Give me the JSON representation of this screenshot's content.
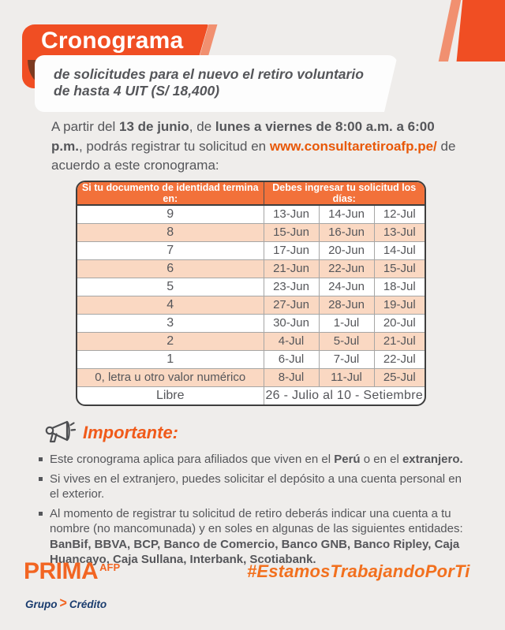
{
  "colors": {
    "accent_orange": "#F04E23",
    "salmon": "#F19070",
    "table_header_orange": "#F2713A",
    "peach_row": "#FAD8C2",
    "text_gray": "#55565A",
    "link_orange": "#E85808",
    "importante_orange": "#F05A1A",
    "brand_orange": "#F26522",
    "navy": "#1A3C6E",
    "background": "#EFEDEB"
  },
  "header": {
    "banner_title": "Cronograma",
    "subtitle_line1": "de solicitudes para el nuevo el retiro voluntario",
    "subtitle_line2": "de hasta 4 UIT (S/ 18,400)"
  },
  "intro": {
    "part1": "A partir del ",
    "bold1": "13 de junio",
    "part2": ", de ",
    "bold2": "lunes a viernes de 8:00 a.m. a 6:00 p.m.",
    "part3": ", podrás registrar tu solicitud en ",
    "link": "www.consultaretiroafp.pe/",
    "part4": " de acuerdo a este cronograma:"
  },
  "table": {
    "col1_header": "Si tu documento de identidad termina en:",
    "col2_header": "Debes ingresar tu solicitud los días:",
    "rows": [
      {
        "id": "9",
        "dates": [
          "13-Jun",
          "14-Jun",
          "12-Jul"
        ]
      },
      {
        "id": "8",
        "dates": [
          "15-Jun",
          "16-Jun",
          "13-Jul"
        ]
      },
      {
        "id": "7",
        "dates": [
          "17-Jun",
          "20-Jun",
          "14-Jul"
        ]
      },
      {
        "id": "6",
        "dates": [
          "21-Jun",
          "22-Jun",
          "15-Jul"
        ]
      },
      {
        "id": "5",
        "dates": [
          "23-Jun",
          "24-Jun",
          "18-Jul"
        ]
      },
      {
        "id": "4",
        "dates": [
          "27-Jun",
          "28-Jun",
          "19-Jul"
        ]
      },
      {
        "id": "3",
        "dates": [
          "30-Jun",
          "1-Jul",
          "20-Jul"
        ]
      },
      {
        "id": "2",
        "dates": [
          "4-Jul",
          "5-Jul",
          "21-Jul"
        ]
      },
      {
        "id": "1",
        "dates": [
          "6-Jul",
          "7-Jul",
          "22-Jul"
        ]
      },
      {
        "id": "0, letra u otro valor numérico",
        "dates": [
          "8-Jul",
          "11-Jul",
          "25-Jul"
        ]
      },
      {
        "id": "Libre",
        "dates_span": "26 - Julio al 10 - Setiembre"
      }
    ]
  },
  "importante": {
    "title": "Importante:",
    "icon": "megaphone-icon",
    "bullets": [
      [
        {
          "t": "Este cronograma aplica para afiliados que viven en el "
        },
        {
          "t": "Perú",
          "b": true
        },
        {
          "t": " o en el "
        },
        {
          "t": "extranjero.",
          "b": true
        }
      ],
      [
        {
          "t": "Si vives en el extranjero, puedes solicitar el depósito a una cuenta personal en el exterior."
        }
      ],
      [
        {
          "t": "Al momento de registrar tu solicitud de retiro deberás indicar una cuenta a tu nombre (no mancomunada) y en soles en algunas de las siguientes entidades: "
        },
        {
          "t": "BanBif, BBVA, BCP, Banco de Comercio, Banco GNB, Banco Ripley, Caja Huancayo, Caja Sullana, Interbank, Scotiabank.",
          "b": true
        }
      ]
    ]
  },
  "footer": {
    "brand": "PRIMA",
    "brand_sup": "AFP",
    "group_word1": "Grupo",
    "group_chevron": ">",
    "group_word2": "Crédito",
    "hashtag": "#EstamosTrabajandoPorTi"
  }
}
